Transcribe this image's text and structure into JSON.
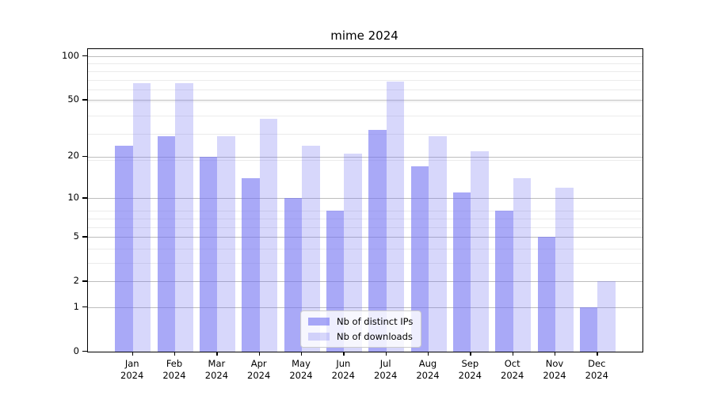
{
  "chart_data": {
    "type": "bar",
    "title": "mime 2024",
    "categories": [
      "Jan",
      "Feb",
      "Mar",
      "Apr",
      "May",
      "Jun",
      "Jul",
      "Aug",
      "Sep",
      "Oct",
      "Nov",
      "Dec"
    ],
    "year": "2024",
    "series": [
      {
        "name": "Nb of distinct IPs",
        "key": "distinct-ips",
        "color": "rgba(112,112,242,0.6)",
        "values": [
          24,
          28,
          20,
          14,
          10,
          8,
          31,
          17,
          11,
          8,
          5,
          1
        ]
      },
      {
        "name": "Nb of downloads",
        "key": "downloads",
        "color": "rgba(112,112,242,0.28)",
        "values": [
          65,
          65,
          28,
          37,
          24,
          21,
          67,
          28,
          22,
          14,
          12,
          2
        ]
      }
    ],
    "yscale": "log10(value+1)",
    "ylim": [
      0,
      100
    ],
    "yticks": [
      0,
      1,
      2,
      5,
      10,
      20,
      50,
      100
    ],
    "minor_gridlines": [
      3,
      4,
      6,
      7,
      8,
      19,
      29,
      39,
      49,
      59,
      69,
      79,
      89
    ],
    "grid": "on",
    "legend_position": "lower center"
  },
  "colors": {
    "bar_base": "#7070f2",
    "major_grid": "#bdbdbd",
    "minor_grid": "#ebebeb",
    "spine": "#000000"
  }
}
